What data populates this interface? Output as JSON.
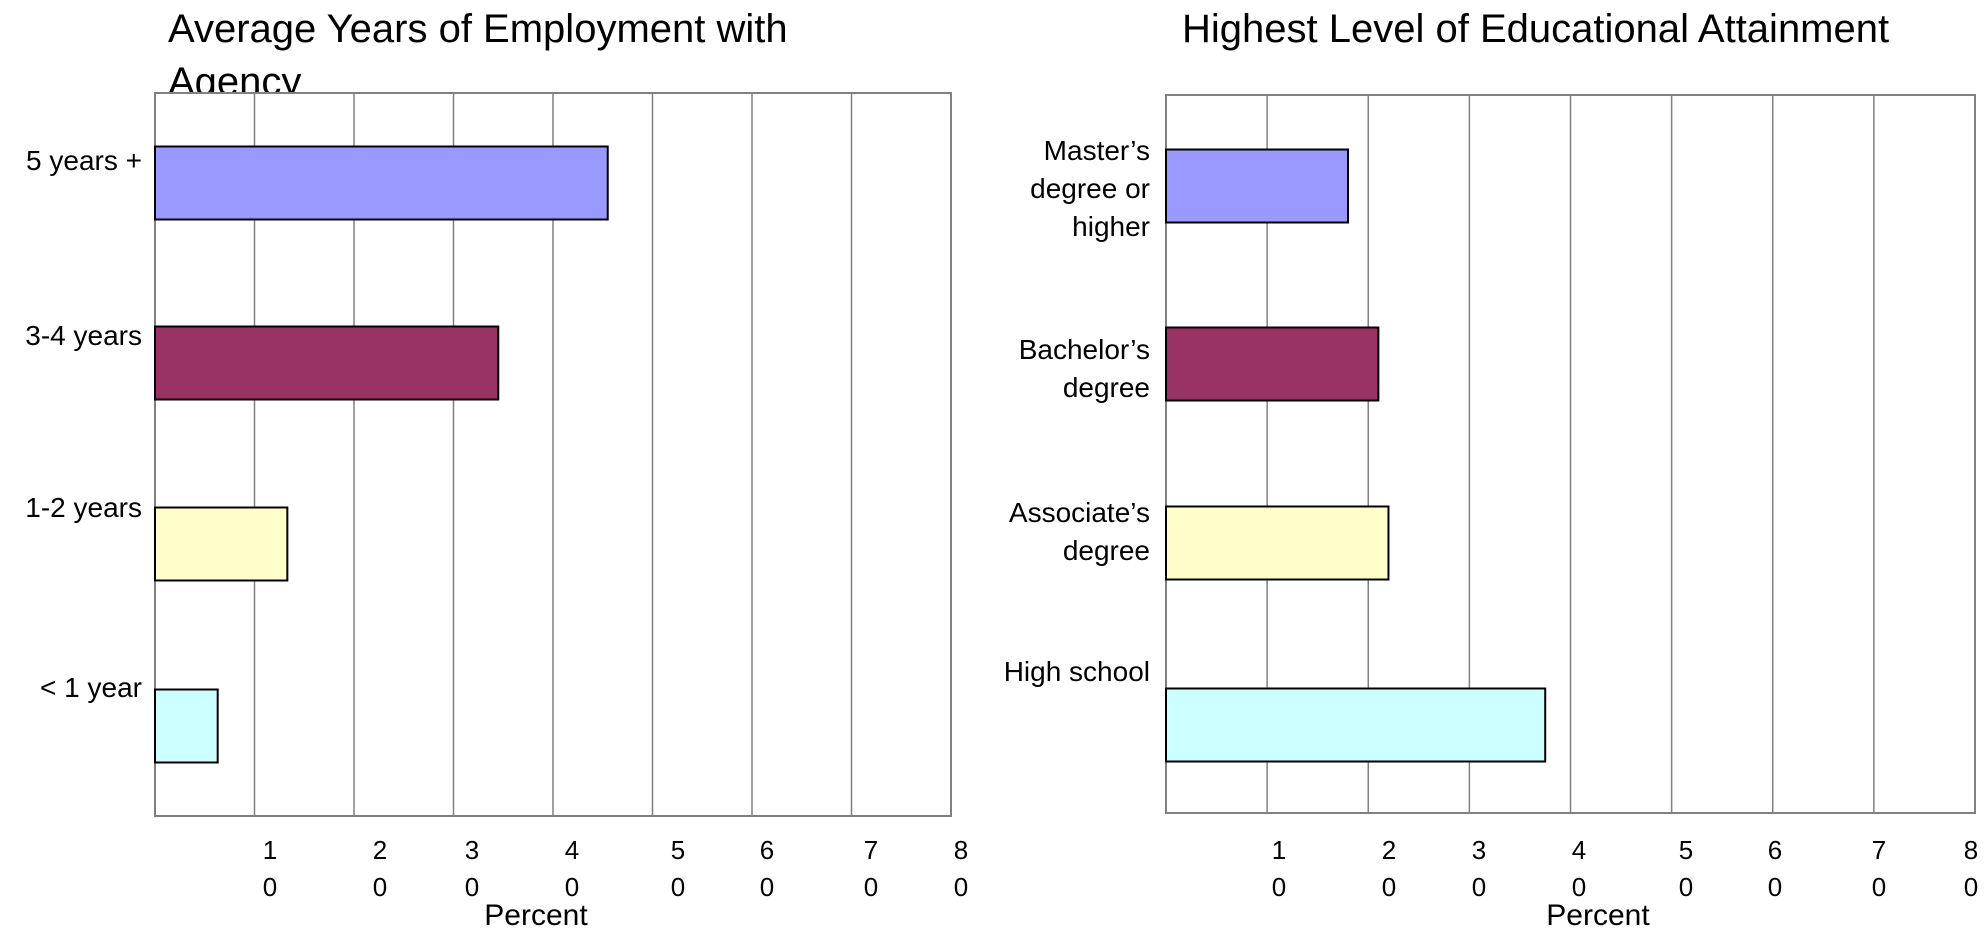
{
  "chart_data": [
    {
      "type": "bar",
      "orientation": "horizontal",
      "title": "Average Years of Employment with Agency",
      "xlabel": "Percent",
      "xlim": [
        0,
        80
      ],
      "x_ticks": [
        10,
        20,
        30,
        40,
        50,
        60,
        70,
        80
      ],
      "grid": true,
      "categories": [
        "5 years +",
        "3-4 years",
        "1-2 years",
        "< 1 year"
      ],
      "values": [
        45.5,
        34.5,
        13.3,
        6.3
      ],
      "colors": [
        "#9999ff",
        "#993366",
        "#ffffcc",
        "#ccffff"
      ]
    },
    {
      "type": "bar",
      "orientation": "horizontal",
      "title": "Highest Level of Educational Attainment",
      "xlabel": "Percent",
      "xlim": [
        0,
        80
      ],
      "x_ticks": [
        10,
        20,
        30,
        40,
        50,
        60,
        70,
        80
      ],
      "grid": true,
      "categories": [
        "Master’s degree or higher",
        "Bachelor’s degree",
        "Associate’s degree",
        "High school"
      ],
      "values": [
        18,
        21,
        22,
        37.5
      ],
      "colors": [
        "#9999ff",
        "#993366",
        "#ffffcc",
        "#ccffff"
      ]
    }
  ]
}
